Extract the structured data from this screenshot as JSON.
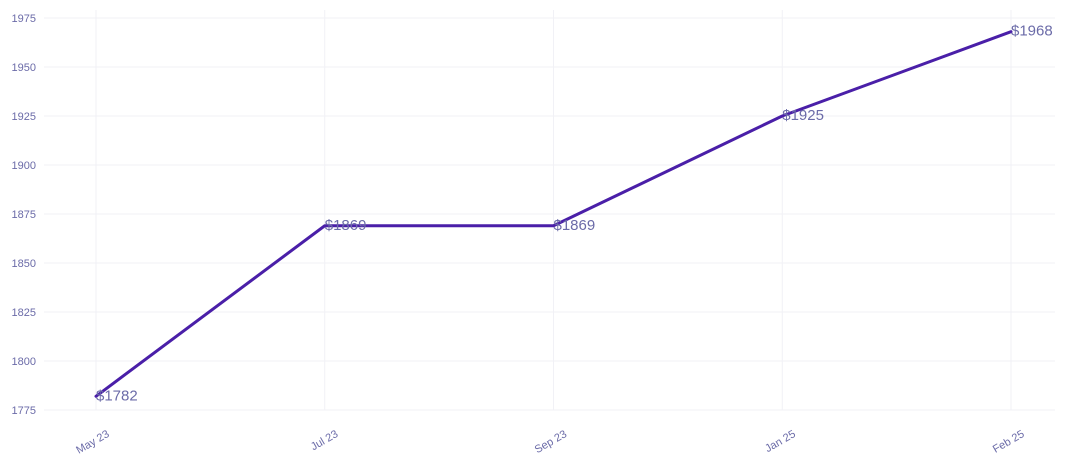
{
  "chart_data": {
    "type": "line",
    "title": "",
    "xlabel": "",
    "ylabel": "",
    "categories": [
      "May 23",
      "Jul 23",
      "Sep 23",
      "Jan 25",
      "Feb 25"
    ],
    "series": [
      {
        "values": [
          1782,
          1869,
          1869,
          1925,
          1968
        ],
        "data_labels": [
          "$1782",
          "$1869",
          "$1869",
          "$1925",
          "$1968"
        ],
        "color": "#4a1fa8"
      }
    ],
    "ylim": [
      1775,
      1975
    ],
    "yticks": [
      1775,
      1800,
      1825,
      1850,
      1875,
      1900,
      1925,
      1950,
      1975
    ],
    "grid": true,
    "legend": "none",
    "label_color": "#6b6ba8",
    "grid_color": "#f1f1f6"
  }
}
